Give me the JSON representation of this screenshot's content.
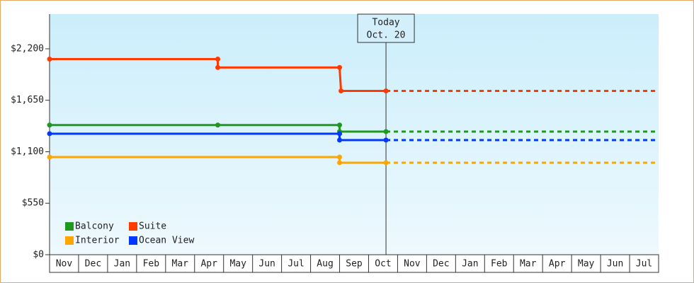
{
  "chart_data": {
    "type": "line",
    "categories": [
      "Nov",
      "Dec",
      "Jan",
      "Feb",
      "Mar",
      "Apr",
      "May",
      "Jun",
      "Jul",
      "Aug",
      "Sep",
      "Oct",
      "Nov",
      "Dec",
      "Jan",
      "Feb",
      "Mar",
      "Apr",
      "May",
      "Jun",
      "Jul"
    ],
    "xlim": [
      0,
      21
    ],
    "ylim": [
      0,
      2570
    ],
    "yticks": [
      {
        "value": 0,
        "label": "$0"
      },
      {
        "value": 550,
        "label": "$550"
      },
      {
        "value": 1100,
        "label": "$1,100"
      },
      {
        "value": 1650,
        "label": "$1,650"
      },
      {
        "value": 2200,
        "label": "$2,200"
      }
    ],
    "annotation": {
      "lines": [
        "Today",
        "Oct. 20"
      ],
      "x": 11.6
    },
    "legend": "lower left",
    "series": [
      {
        "name": "Balcony",
        "color": "#1f9a1f",
        "x": [
          0,
          5.8,
          10,
          10,
          11.6
        ],
        "values": [
          1385,
          1385,
          1385,
          1315,
          1315
        ]
      },
      {
        "name": "Suite",
        "color": "#ff3a00",
        "x": [
          0,
          5.8,
          5.8,
          10,
          10.05,
          11.6
        ],
        "values": [
          2090,
          2090,
          2000,
          2000,
          1750,
          1750
        ]
      },
      {
        "name": "Interior",
        "color": "#ffa500",
        "x": [
          0,
          10,
          10,
          11.6
        ],
        "values": [
          1043,
          1043,
          983,
          983
        ]
      },
      {
        "name": "Ocean View",
        "color": "#0038ff",
        "x": [
          0,
          10,
          10,
          11.6
        ],
        "values": [
          1293,
          1293,
          1225,
          1225
        ]
      }
    ]
  }
}
